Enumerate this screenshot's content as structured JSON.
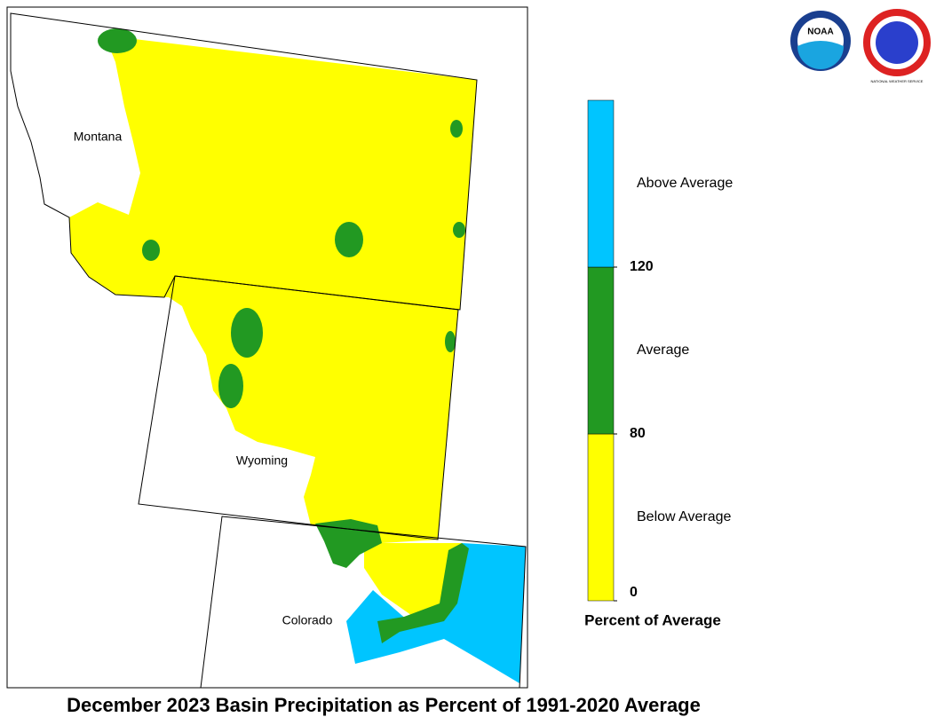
{
  "map": {
    "title": "December 2023 Basin Precipitation as Percent of 1991-2020 Average",
    "labels": [
      "Montana",
      "Wyoming",
      "Colorado"
    ],
    "logos": [
      "NOAA",
      "NATIONAL WEATHER SERVICE"
    ]
  },
  "legend": {
    "title": "Percent of Average",
    "classes": [
      {
        "label": "Below Average",
        "color": "#ffff00"
      },
      {
        "label": "Average",
        "color": "#229922"
      },
      {
        "label": "Above Average",
        "color": "#00c5ff"
      }
    ],
    "ticks": [
      0,
      80,
      120
    ]
  }
}
